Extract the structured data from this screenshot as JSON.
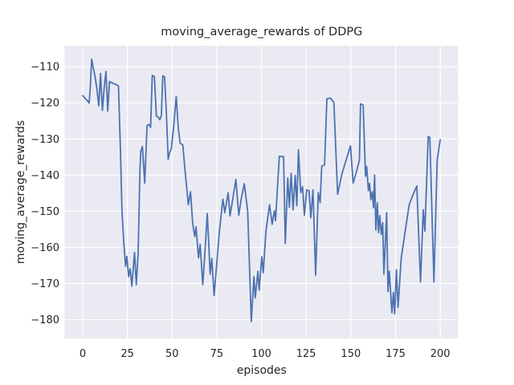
{
  "chart_data": {
    "type": "line",
    "title": "moving_average_rewards of DDPG",
    "xlabel": "episodes",
    "ylabel": "moving_average_rewards",
    "x_ticks": [
      0,
      25,
      50,
      75,
      100,
      125,
      150,
      175,
      200
    ],
    "y_ticks": [
      -110,
      -120,
      -130,
      -140,
      -150,
      -160,
      -170,
      -180
    ],
    "xlim": [
      -10.05,
      210.05
    ],
    "ylim": [
      -185.2,
      -104.2
    ],
    "grid": true,
    "legend": "none",
    "style": {
      "figure_bg": "#ffffff",
      "axes_bg": "#eaeaf2",
      "grid_color": "#ffffff",
      "line_color": "#4c72b0",
      "text_color": "#262626"
    },
    "series": [
      {
        "name": "moving_average_rewards",
        "points": [
          [
            0,
            -118.0
          ],
          [
            1,
            -118.6
          ],
          [
            2,
            -119.1
          ],
          [
            3,
            -119.6
          ],
          [
            3.6,
            -120.1
          ],
          [
            4.3,
            -115.5
          ],
          [
            5,
            -107.9
          ],
          [
            5.8,
            -110.1
          ],
          [
            7,
            -112.9
          ],
          [
            8,
            -116.4
          ],
          [
            9,
            -120.8
          ],
          [
            10,
            -111.9
          ],
          [
            11,
            -122.1
          ],
          [
            12,
            -116.0
          ],
          [
            13,
            -111.3
          ],
          [
            13.6,
            -117.0
          ],
          [
            14,
            -122.3
          ],
          [
            15,
            -114.1
          ],
          [
            16,
            -114.4
          ],
          [
            18,
            -114.8
          ],
          [
            20,
            -115.3
          ],
          [
            21,
            -131
          ],
          [
            22,
            -150
          ],
          [
            23,
            -159
          ],
          [
            24,
            -165.2
          ],
          [
            24.7,
            -162.5
          ],
          [
            25.7,
            -168.1
          ],
          [
            26.5,
            -165.9
          ],
          [
            27.5,
            -170.7
          ],
          [
            29,
            -161.4
          ],
          [
            30,
            -170.3
          ],
          [
            31,
            -161.5
          ],
          [
            32,
            -139
          ],
          [
            32.5,
            -133.4
          ],
          [
            33.4,
            -132.1
          ],
          [
            34.7,
            -142.2
          ],
          [
            36,
            -126.3
          ],
          [
            37,
            -126.0
          ],
          [
            38,
            -126.8
          ],
          [
            38.9,
            -112.4
          ],
          [
            40.1,
            -112.7
          ],
          [
            41.2,
            -123.7
          ],
          [
            42.2,
            -123.9
          ],
          [
            43.2,
            -124.7
          ],
          [
            44,
            -123.5
          ],
          [
            44.8,
            -112.5
          ],
          [
            45.8,
            -112.8
          ],
          [
            46.8,
            -122.5
          ],
          [
            47.8,
            -135.6
          ],
          [
            48.6,
            -133.9
          ],
          [
            49.6,
            -132.6
          ],
          [
            51,
            -126
          ],
          [
            52.3,
            -118.2
          ],
          [
            53.5,
            -127
          ],
          [
            54.5,
            -131.2
          ],
          [
            56,
            -131.6
          ],
          [
            57.3,
            -139
          ],
          [
            58.3,
            -144.1
          ],
          [
            59.1,
            -148.2
          ],
          [
            60.3,
            -144.6
          ],
          [
            61.5,
            -153.3
          ],
          [
            62.7,
            -157.0
          ],
          [
            63.4,
            -154.3
          ],
          [
            64.8,
            -162.9
          ],
          [
            65.7,
            -159.2
          ],
          [
            67.2,
            -170.3
          ],
          [
            68.5,
            -160.5
          ],
          [
            69.7,
            -150.6
          ],
          [
            71.3,
            -167.4
          ],
          [
            72.2,
            -163.0
          ],
          [
            73.5,
            -173.3
          ],
          [
            75,
            -164.5
          ],
          [
            76.5,
            -155.5
          ],
          [
            78.4,
            -146.6
          ],
          [
            79.5,
            -150.4
          ],
          [
            81.4,
            -144.9
          ],
          [
            82.4,
            -151.3
          ],
          [
            84,
            -146.5
          ],
          [
            85.7,
            -141.2
          ],
          [
            87.3,
            -151.1
          ],
          [
            88.6,
            -146.8
          ],
          [
            90.4,
            -142.4
          ],
          [
            92.3,
            -150
          ],
          [
            94.3,
            -180.5
          ],
          [
            95.8,
            -168.1
          ],
          [
            96.5,
            -174.0
          ],
          [
            98,
            -166.6
          ],
          [
            98.7,
            -171.8
          ],
          [
            100.2,
            -162.6
          ],
          [
            101,
            -167.0
          ],
          [
            102.5,
            -155.5
          ],
          [
            104.5,
            -148.2
          ],
          [
            106,
            -153.6
          ],
          [
            107.2,
            -149.9
          ],
          [
            107.9,
            -152.6
          ],
          [
            109,
            -143
          ],
          [
            110,
            -134.8
          ],
          [
            112.4,
            -134.9
          ],
          [
            113.3,
            -158.9
          ],
          [
            114.7,
            -140.8
          ],
          [
            115.6,
            -148.9
          ],
          [
            116.6,
            -139.5
          ],
          [
            117.7,
            -149.6
          ],
          [
            118.9,
            -140.1
          ],
          [
            119.8,
            -148.5
          ],
          [
            120.7,
            -133.0
          ],
          [
            122,
            -144.8
          ],
          [
            123,
            -143.2
          ],
          [
            124,
            -151.1
          ],
          [
            125.3,
            -144.1
          ],
          [
            126.6,
            -144.3
          ],
          [
            127.6,
            -151.8
          ],
          [
            128.8,
            -144.1
          ],
          [
            130.3,
            -167.7
          ],
          [
            131.8,
            -144.8
          ],
          [
            132.8,
            -147.6
          ],
          [
            133.7,
            -137.5
          ],
          [
            135.3,
            -137.2
          ],
          [
            136.6,
            -118.9
          ],
          [
            138.6,
            -118.7
          ],
          [
            140.5,
            -119.9
          ],
          [
            142.6,
            -145.3
          ],
          [
            145,
            -139.7
          ],
          [
            147.5,
            -135.6
          ],
          [
            149.8,
            -131.9
          ],
          [
            151.3,
            -142.2
          ],
          [
            153,
            -139.3
          ],
          [
            154.8,
            -135.9
          ],
          [
            155.4,
            -120.3
          ],
          [
            156.9,
            -120.6
          ],
          [
            158.2,
            -140.3
          ],
          [
            158.9,
            -137.6
          ],
          [
            159.8,
            -144.3
          ],
          [
            160.5,
            -142.3
          ],
          [
            161.2,
            -146.8
          ],
          [
            162,
            -144.6
          ],
          [
            162.7,
            -149.0
          ],
          [
            163.3,
            -140.0
          ],
          [
            164,
            -155.2
          ],
          [
            164.8,
            -147.6
          ],
          [
            165.5,
            -155.9
          ],
          [
            166.2,
            -151.2
          ],
          [
            167,
            -156.4
          ],
          [
            167.8,
            -153.2
          ],
          [
            168.5,
            -167.4
          ],
          [
            170,
            -150.4
          ],
          [
            170.8,
            -172.2
          ],
          [
            171.5,
            -166.6
          ],
          [
            173,
            -178.1
          ],
          [
            173.8,
            -172.5
          ],
          [
            174.5,
            -178.4
          ],
          [
            175.5,
            -166.2
          ],
          [
            176.4,
            -176.6
          ],
          [
            178.2,
            -162.9
          ],
          [
            180.4,
            -155.5
          ],
          [
            182.7,
            -148.1
          ],
          [
            184.6,
            -145.6
          ],
          [
            186.9,
            -143.0
          ],
          [
            189,
            -169.6
          ],
          [
            190.5,
            -149.6
          ],
          [
            191.4,
            -155.5
          ],
          [
            193.3,
            -129.3
          ],
          [
            194.2,
            -129.6
          ],
          [
            196.5,
            -169.6
          ],
          [
            198.3,
            -136.0
          ],
          [
            200,
            -130.2
          ]
        ]
      }
    ]
  }
}
